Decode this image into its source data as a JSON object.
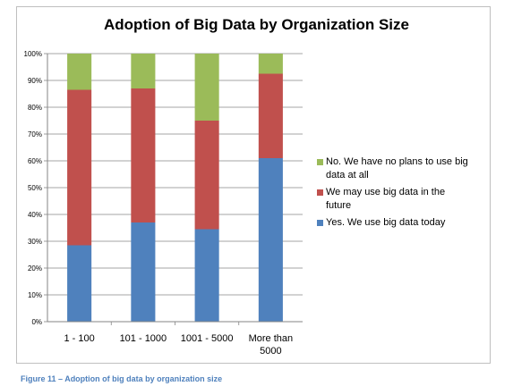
{
  "chart_data": {
    "type": "bar",
    "stacked": true,
    "title": "Adoption of Big Data by Organization Size",
    "xlabel": "",
    "ylabel": "",
    "ylim": [
      0,
      100
    ],
    "yticks": [
      "0%",
      "10%",
      "20%",
      "30%",
      "40%",
      "50%",
      "60%",
      "70%",
      "80%",
      "90%",
      "100%"
    ],
    "categories": [
      [
        "1 - 100"
      ],
      [
        "101 - 1000"
      ],
      [
        "1001 - 5000"
      ],
      [
        "More than",
        "5000"
      ]
    ],
    "grid": true,
    "legend_position": "right",
    "series": [
      {
        "name": "Yes. We use big data today",
        "color": "#4f81bd",
        "values": [
          28.5,
          37,
          34.5,
          61
        ]
      },
      {
        "name": "We may use big data in the future",
        "color": "#c0504d",
        "values": [
          58,
          50,
          40.5,
          31.5
        ]
      },
      {
        "name": "No. We have no plans to use big data at all",
        "color": "#9bbb59",
        "values": [
          13.5,
          13,
          25,
          7.5
        ]
      }
    ],
    "legend_order": [
      2,
      1,
      0
    ]
  },
  "caption": "Figure 11 – Adoption of big data by organization size"
}
